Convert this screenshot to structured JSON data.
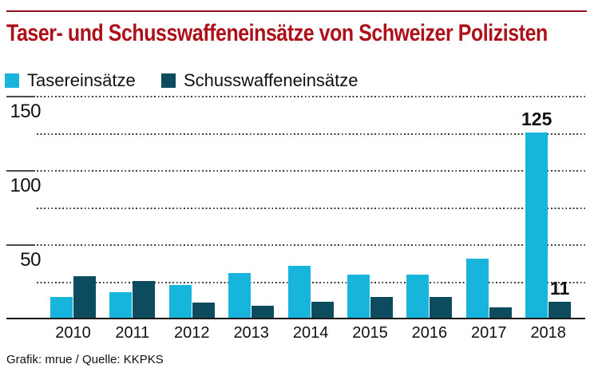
{
  "page": {
    "title": "Taser- und Schusswaffeneinsätze von Schweizer Polizisten",
    "footer": "Grafik: mrue / Quelle: KKPKS"
  },
  "colors": {
    "title_red": "#ad1019",
    "rule_red": "#8e1021",
    "taser_blue": "#17b4dc",
    "firearm_teal": "#0d4b5f",
    "axis_black": "#1a1a1a",
    "grid_gray": "#4c4c4c"
  },
  "legend": {
    "items": [
      {
        "label": "Tasereinsätze",
        "color": "#17b4dc"
      },
      {
        "label": "Schusswaffeneinsätze",
        "color": "#0d4b5f"
      }
    ]
  },
  "chart_data": {
    "type": "bar",
    "title": "Taser- und Schusswaffeneinsätze von Schweizer Polizisten",
    "categories": [
      "2010",
      "2011",
      "2012",
      "2013",
      "2014",
      "2015",
      "2016",
      "2017",
      "2018"
    ],
    "series": [
      {
        "name": "Tasereinsätze",
        "color": "#17b4dc",
        "values": [
          14,
          17,
          22,
          30,
          35,
          29,
          29,
          40,
          125
        ]
      },
      {
        "name": "Schusswaffeneinsätze",
        "color": "#0d4b5f",
        "values": [
          28,
          25,
          10,
          8,
          11,
          14,
          14,
          7,
          11
        ]
      }
    ],
    "annotations": [
      {
        "category": "2018",
        "series_index": 0,
        "text": "125"
      },
      {
        "category": "2018",
        "series_index": 1,
        "text": "11"
      }
    ],
    "ylim": [
      0,
      150
    ],
    "yticks_major": [
      50,
      100,
      150
    ],
    "yticks_minor": [
      25,
      75,
      125
    ],
    "grid": "horizontal-dotted",
    "legend_position": "top-left",
    "source": "Grafik: mrue / Quelle: KKPKS"
  }
}
